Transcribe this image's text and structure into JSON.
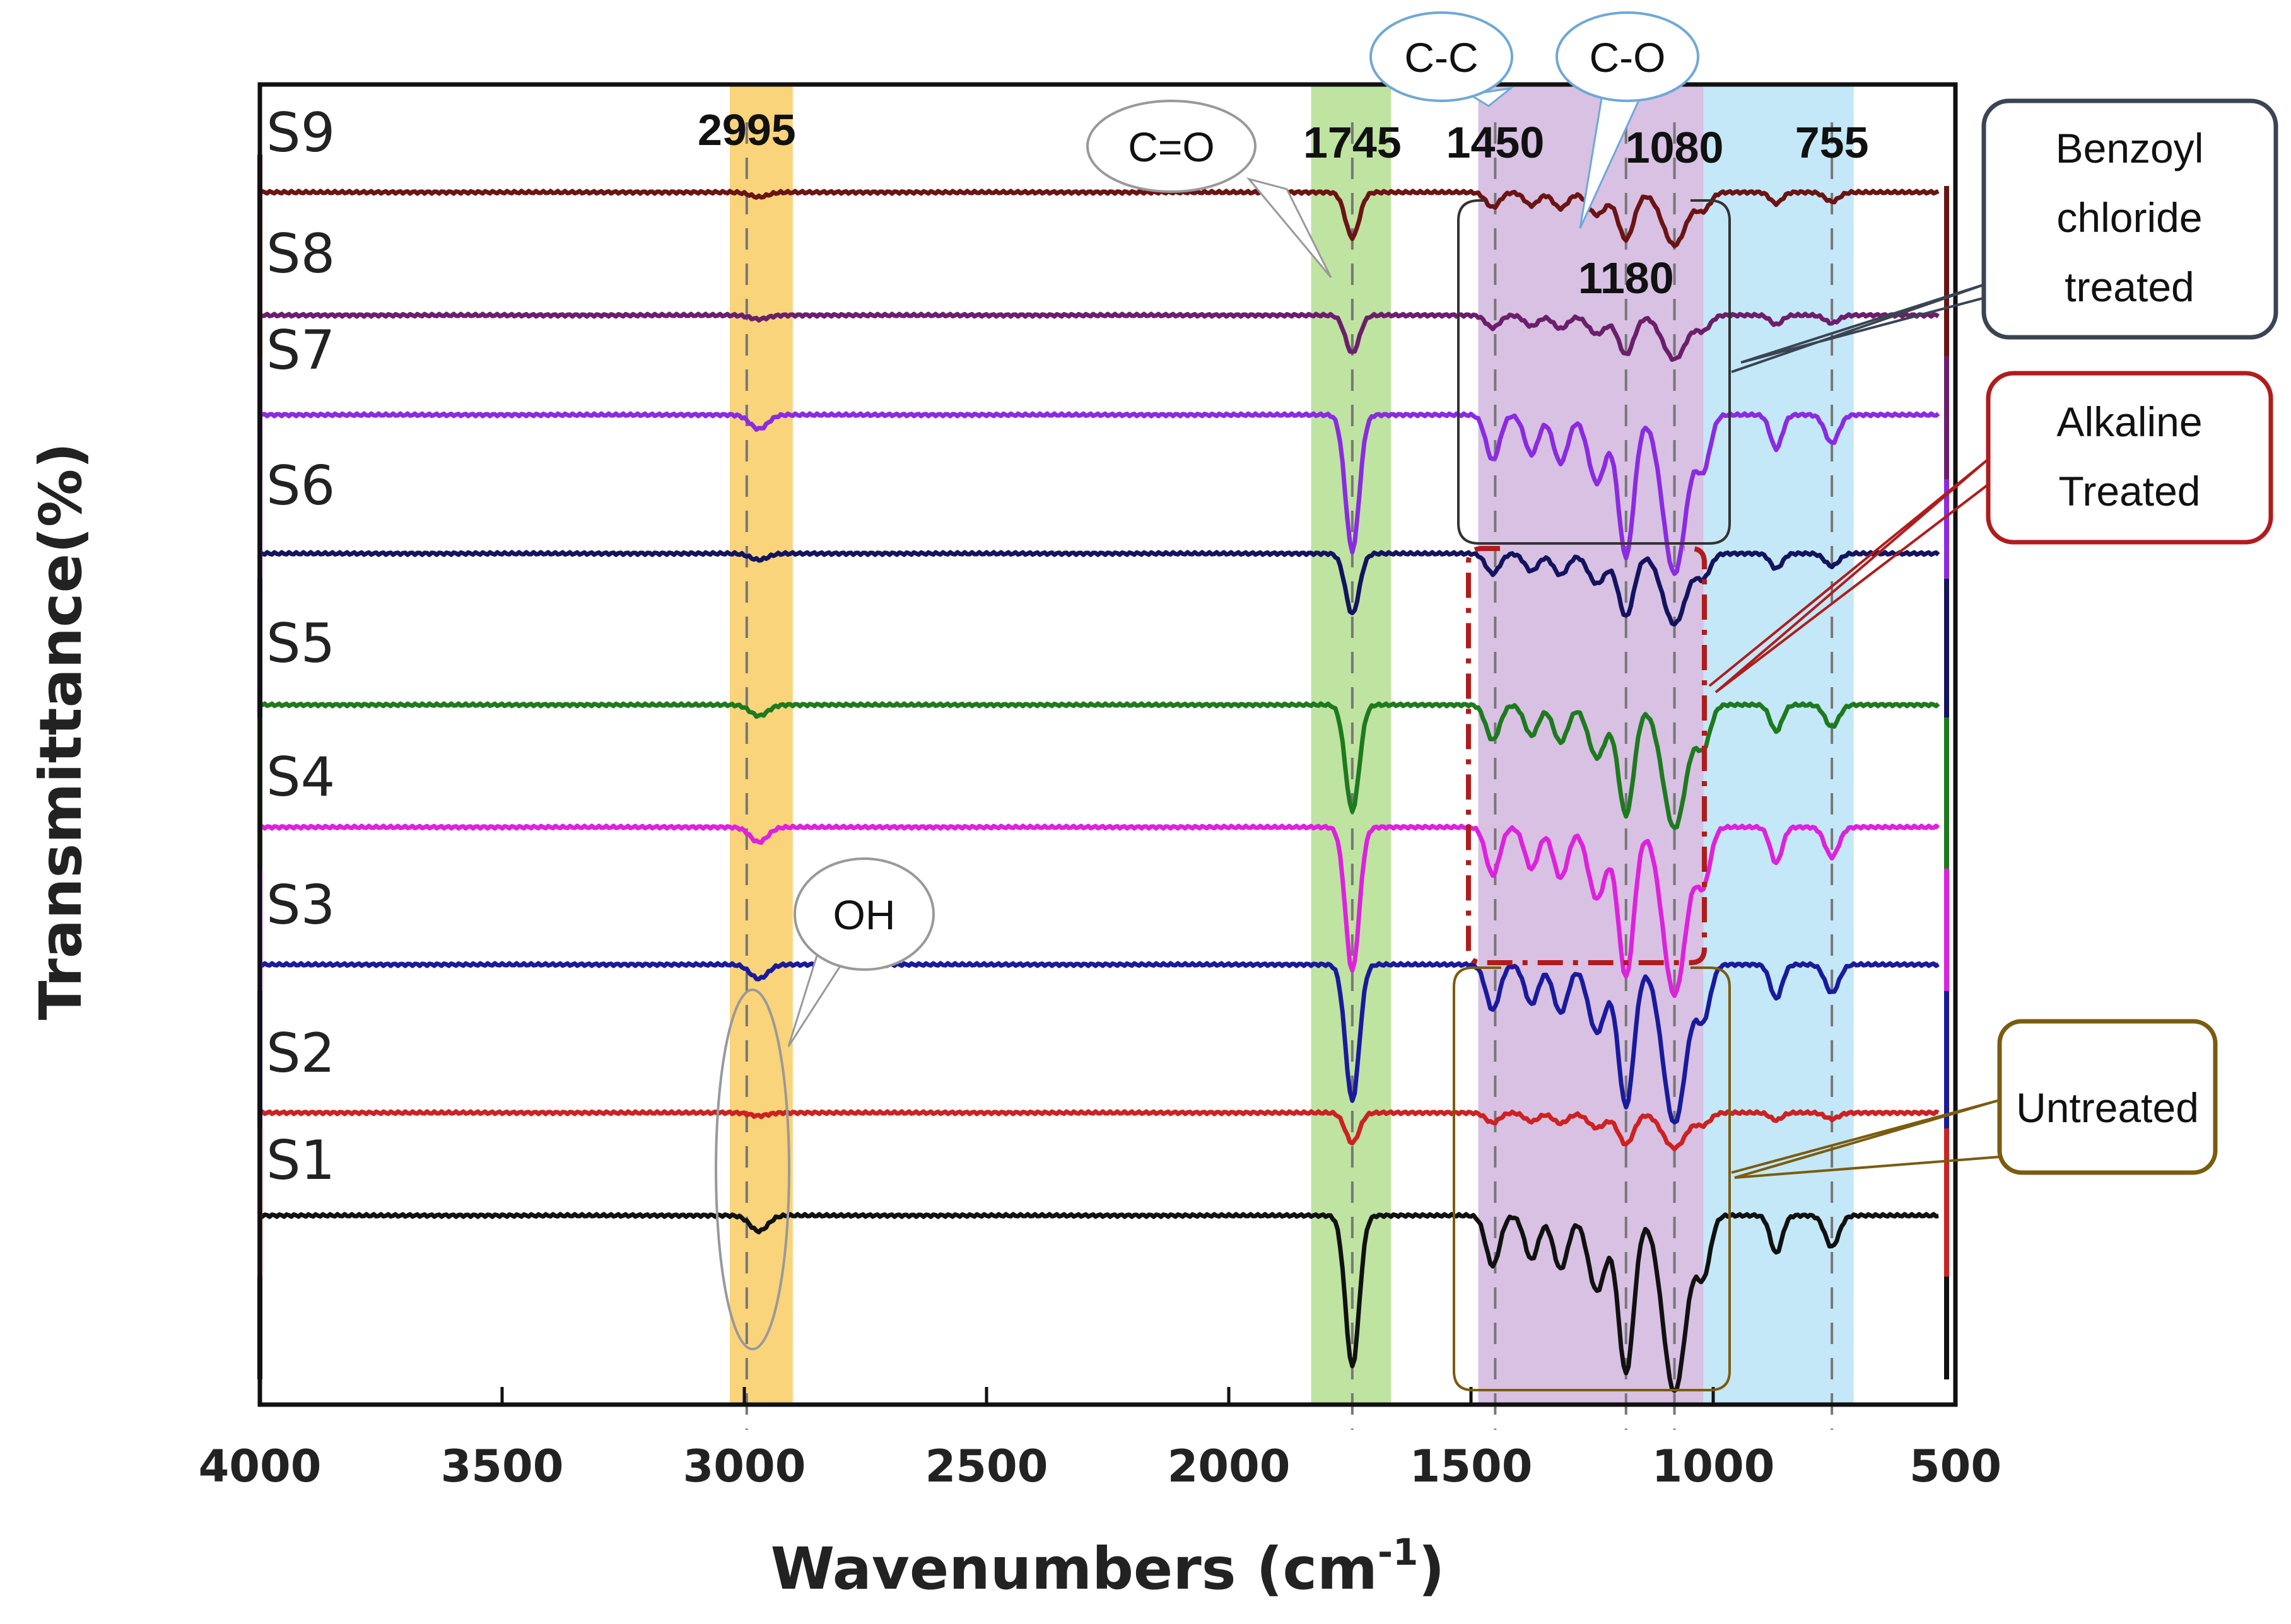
{
  "chart_data": {
    "type": "line",
    "title": "",
    "xlabel": "Wavenumbers (cm",
    "xlabel_sup": "-1",
    "xlabel_end": ")",
    "ylabel": "Transmittance(%)",
    "xlim": [
      4000,
      500
    ],
    "x_ticks": [
      "4000",
      "3500",
      "3000",
      "2500",
      "2000",
      "1500",
      "1000",
      "500"
    ],
    "series": [
      {
        "name": "S1",
        "color": "#111111",
        "depth": 1.0
      },
      {
        "name": "S2",
        "color": "#cc2222",
        "depth": 0.2
      },
      {
        "name": "S3",
        "color": "#1a1a9c",
        "depth": 0.9
      },
      {
        "name": "S4",
        "color": "#dd22dd",
        "depth": 0.95
      },
      {
        "name": "S5",
        "color": "#1e7a1e",
        "depth": 0.7
      },
      {
        "name": "S6",
        "color": "#14145e",
        "depth": 0.4
      },
      {
        "name": "S7",
        "color": "#8a2be2",
        "depth": 0.9
      },
      {
        "name": "S8",
        "color": "#6b1f6b",
        "depth": 0.25
      },
      {
        "name": "S9",
        "color": "#6b1414",
        "depth": 0.3
      }
    ],
    "bands": [
      {
        "from": 3030,
        "to": 2900,
        "color": "#f9d47a"
      },
      {
        "from": 1830,
        "to": 1665,
        "color": "#bfe3a1"
      },
      {
        "from": 1485,
        "to": 1020,
        "color": "#d8c1e3"
      },
      {
        "from": 1020,
        "to": 710,
        "color": "#c4e8f7"
      }
    ],
    "peak_lines": [
      2995,
      1745,
      1450,
      1180,
      1080,
      755
    ],
    "peak_labels": [
      {
        "text": "2995",
        "wn": 2995
      },
      {
        "text": "1745",
        "wn": 1745
      },
      {
        "text": "1450",
        "wn": 1450
      },
      {
        "text": "1080",
        "wn": 1080
      },
      {
        "text": "755",
        "wn": 755
      },
      {
        "text": "1180",
        "wn": 1180
      }
    ],
    "callouts": [
      "C=O",
      "C-C",
      "C-O",
      "OH"
    ],
    "groups": [
      {
        "label_lines": [
          "Benzoyl",
          "chloride",
          "treated"
        ],
        "color": "#3a4452"
      },
      {
        "label_lines": [
          "Alkaline",
          "Treated"
        ],
        "color": "#b01c1c"
      },
      {
        "label_lines": [
          "Untreated"
        ],
        "color": "#7a5c10"
      }
    ]
  }
}
